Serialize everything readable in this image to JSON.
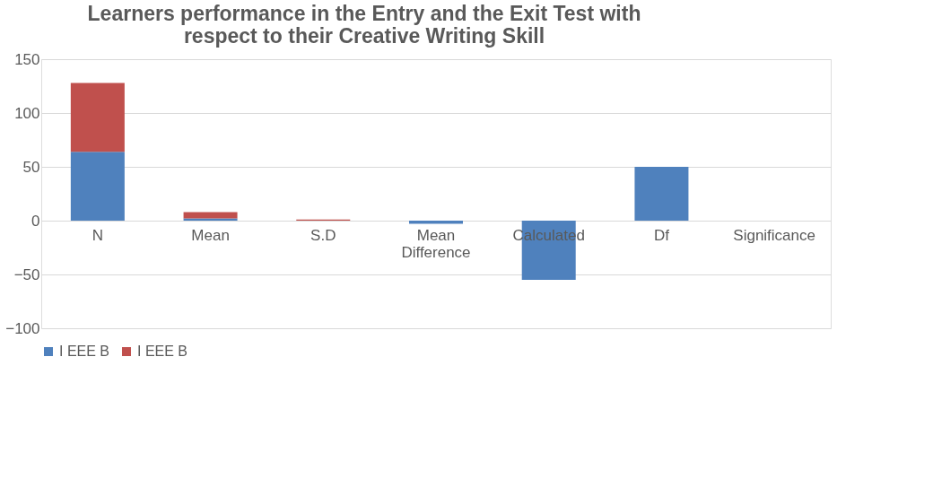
{
  "chart_data": {
    "type": "bar",
    "title": [
      "Learners performance in the Entry and the Exit Test with",
      "respect to their Creative Writing Skill"
    ],
    "categories": [
      "N",
      "Mean",
      "S.D",
      "Mean Difference",
      "Calculated",
      "Df",
      "Significance"
    ],
    "stacked": true,
    "series": [
      {
        "name": "I EEE B",
        "color": "#4f81bd",
        "values": [
          64,
          2,
          null,
          -3,
          -55,
          50,
          null
        ]
      },
      {
        "name": "I EEE B",
        "color": "#c0504d",
        "values": [
          64,
          6,
          1,
          null,
          null,
          null,
          null
        ]
      }
    ],
    "ylim": [
      -100,
      150
    ],
    "yticks": [
      -100,
      -50,
      0,
      50,
      100,
      150
    ],
    "grid": "y",
    "legend": "bottom"
  }
}
